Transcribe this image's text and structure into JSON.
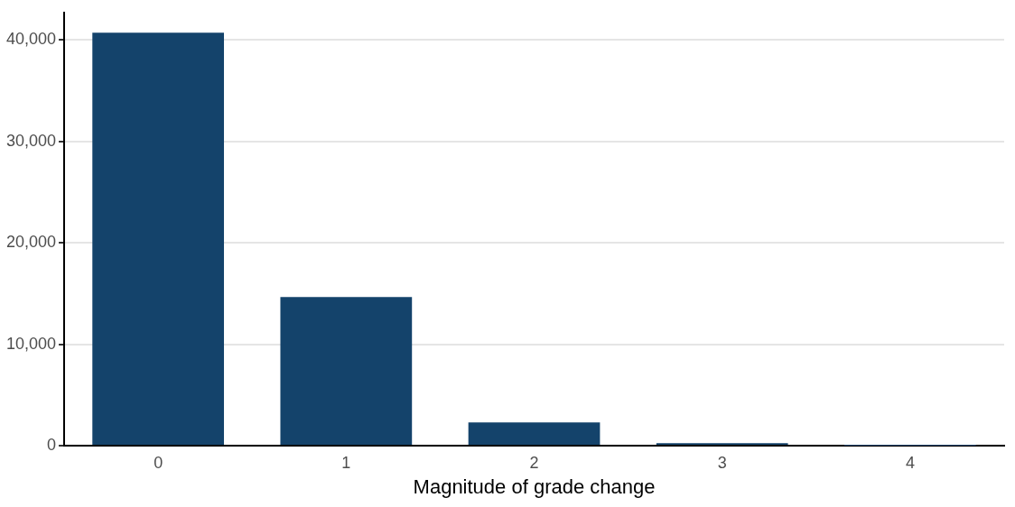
{
  "chart_data": {
    "type": "bar",
    "xlabel": "Magnitude of grade change",
    "categories": [
      "0",
      "1",
      "2",
      "3",
      "4"
    ],
    "values": [
      40700,
      14650,
      2300,
      250,
      10
    ],
    "color": "#14436b",
    "ylim": [
      0,
      42700
    ],
    "yticks": [
      {
        "value": 0,
        "label": "0"
      },
      {
        "value": 10000,
        "label": "10,000"
      },
      {
        "value": 20000,
        "label": "20,000"
      },
      {
        "value": 30000,
        "label": "30,000"
      },
      {
        "value": 40000,
        "label": "40,000"
      }
    ],
    "grid": "y",
    "legend": false
  }
}
